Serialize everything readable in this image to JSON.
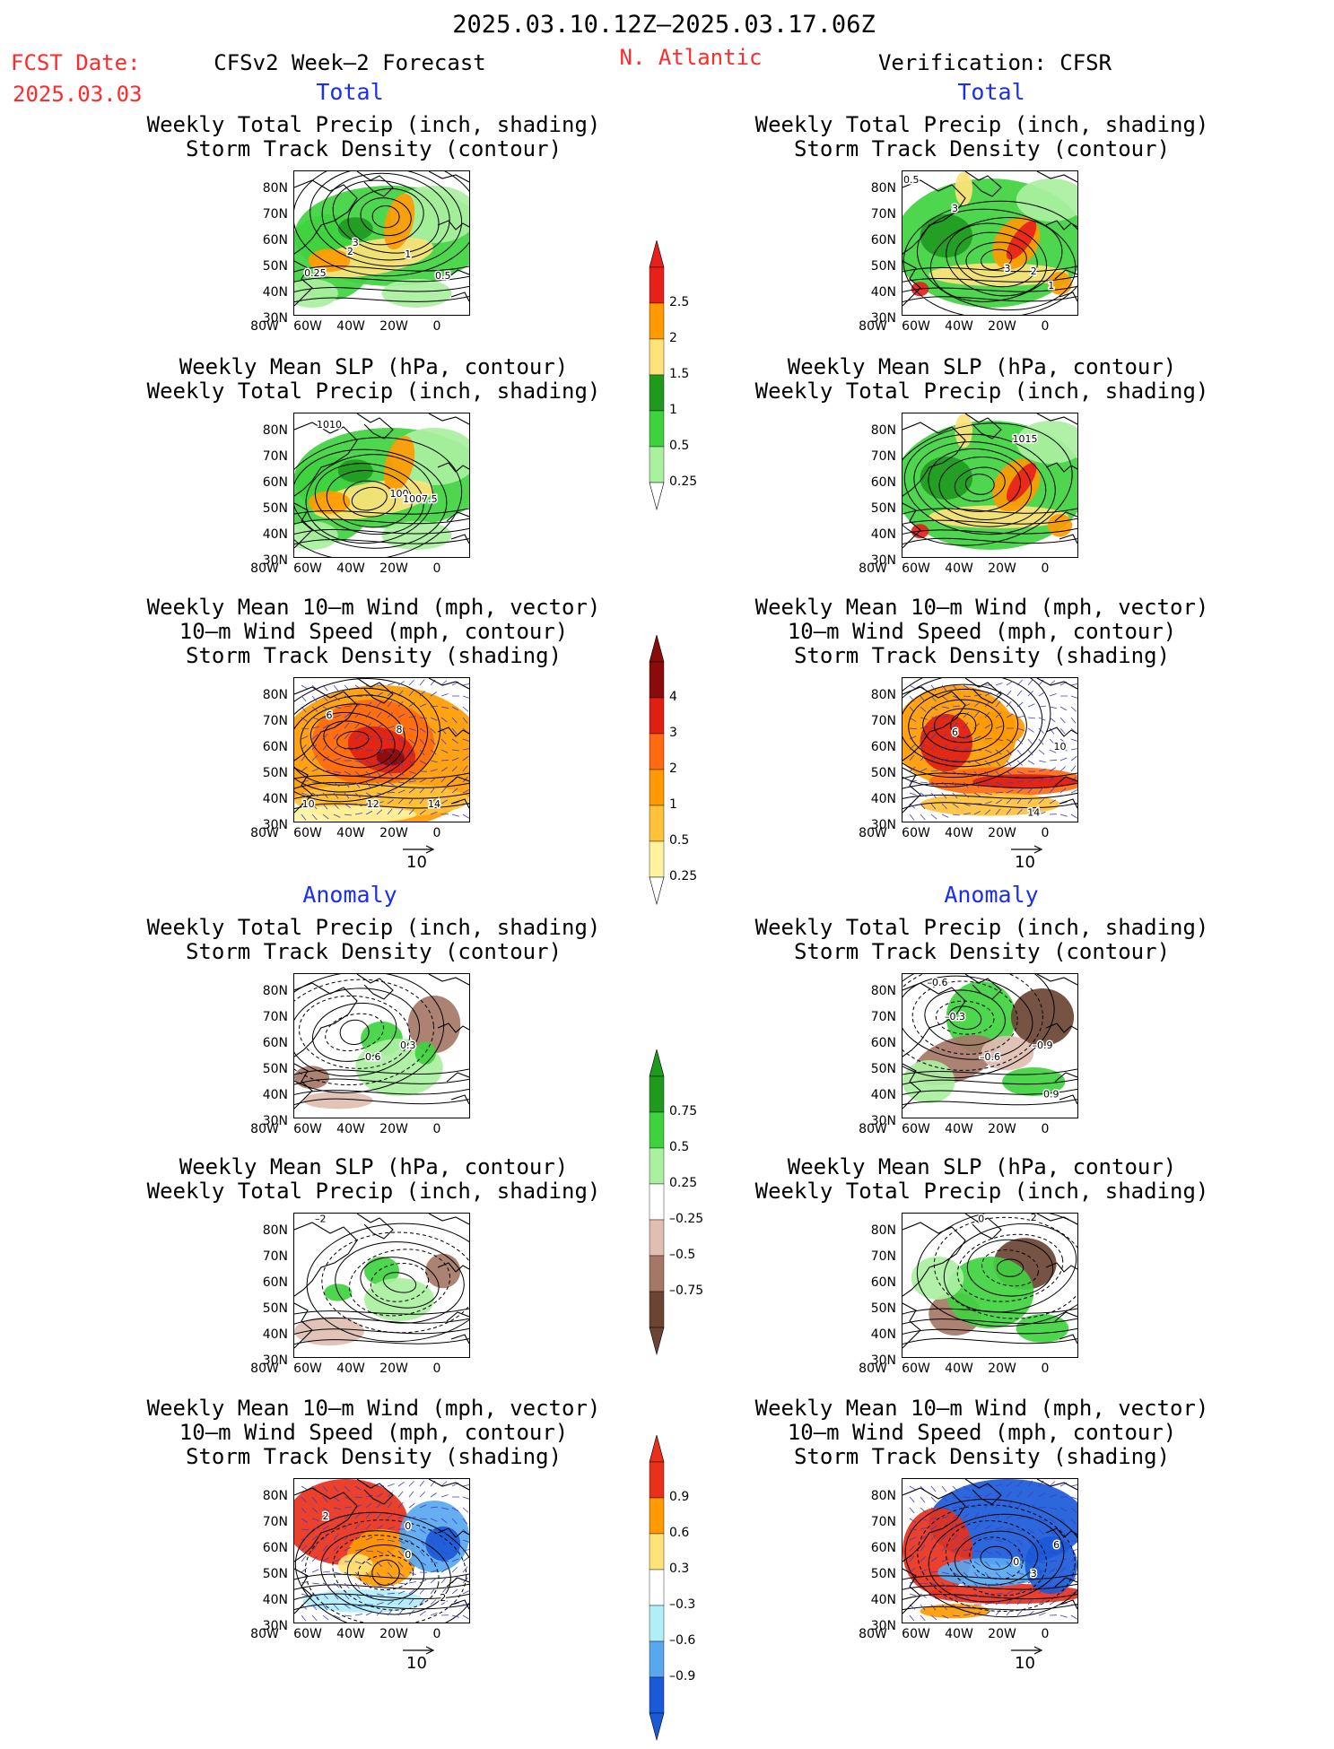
{
  "header": {
    "date_range": "2025.03.10.12Z–2025.03.17.06Z",
    "fcst_date_label": "FCST Date:",
    "fcst_date_value": "2025.03.03",
    "left_title": "CFSv2 Week–2 Forecast",
    "region": "N. Atlantic",
    "right_title": "Verification: CFSR"
  },
  "section_labels": {
    "total": "Total",
    "anomaly": "Anomaly"
  },
  "panel_titles": {
    "precip_track": [
      "Weekly Total Precip (inch, shading)",
      "Storm Track Density (contour)"
    ],
    "slp_precip": [
      "Weekly Mean SLP (hPa, contour)",
      "Weekly Total Precip (inch, shading)"
    ],
    "wind_track": [
      "Weekly Mean 10–m Wind (mph, vector)",
      "10–m Wind Speed (mph, contour)",
      "Storm Track Density (shading)"
    ]
  },
  "axes": {
    "lat_ticks": [
      "80N",
      "70N",
      "60N",
      "50N",
      "40N",
      "30N"
    ],
    "lon_ticks": [
      "80W",
      "60W",
      "40W",
      "20W",
      "0"
    ]
  },
  "vector_ref": "10",
  "colorbars": {
    "precip_total": {
      "labels": [
        "2.5",
        "2",
        "1.5",
        "1",
        "0.5",
        "0.25"
      ],
      "colors": [
        "#e8201a",
        "#ff9a00",
        "#ffe27a",
        "#1f9a1f",
        "#3fd23f",
        "#aaf0a0"
      ]
    },
    "track_total": {
      "labels": [
        "4",
        "3",
        "2",
        "1",
        "0.5",
        "0.25"
      ],
      "colors": [
        "#8b0a0a",
        "#e11e14",
        "#ff6a10",
        "#ff9a00",
        "#ffc23a",
        "#fff3a0"
      ]
    },
    "precip_anom": {
      "labels": [
        "0.75",
        "0.5",
        "0.25",
        "–0.25",
        "–0.5",
        "–0.75"
      ],
      "colors": [
        "#1f9a1f",
        "#3fd23f",
        "#aaf0a0",
        "#ffffff",
        "#e0beb2",
        "#a57767",
        "#6b4433"
      ]
    },
    "track_anom": {
      "labels": [
        "0.9",
        "0.6",
        "0.3",
        "–0.3",
        "–0.6",
        "–0.9"
      ],
      "colors": [
        "#e8301a",
        "#ff9a00",
        "#ffe27a",
        "#ffffff",
        "#b0eef8",
        "#58a8f0",
        "#1a5ad8"
      ]
    }
  },
  "contour_labels": {
    "f1": [
      "0.25",
      "3",
      "2",
      "1",
      "0.5"
    ],
    "f2": [
      "1010",
      "100",
      "1007.5"
    ],
    "f3": [
      "6",
      "8",
      "10",
      "12",
      "14"
    ],
    "v1": [
      "0.5",
      "3",
      "3",
      "2",
      "1"
    ],
    "v2": [
      "1015"
    ],
    "v3": [
      "6",
      "10",
      "14"
    ],
    "fa1": [
      "0.6",
      "0.3"
    ],
    "fa2": [
      "–2"
    ],
    "fa3": [
      "2",
      "0",
      "0",
      "2"
    ],
    "va1": [
      "–0.6",
      "–0.3",
      "–0.6",
      "–0.9",
      "0.9"
    ],
    "va2": [
      "0",
      "2"
    ],
    "va3": [
      "0",
      "3",
      "6"
    ]
  }
}
